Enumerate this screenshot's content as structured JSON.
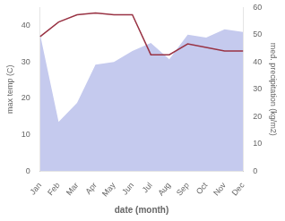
{
  "chart_data": {
    "type": "line",
    "categories": [
      "Jan",
      "Feb",
      "Mar",
      "Apr",
      "May",
      "Jun",
      "Jul",
      "Aug",
      "Sep",
      "Oct",
      "Nov",
      "Dec"
    ],
    "series": [
      {
        "type": "area",
        "axis": "y2",
        "color": "#c5caee",
        "values": [
          50,
          18,
          25,
          39,
          40,
          44,
          47,
          41,
          50,
          49,
          52,
          51
        ]
      },
      {
        "type": "line",
        "color": "#993344",
        "values": [
          37,
          41,
          43,
          43.5,
          43,
          43,
          32,
          32,
          35,
          34,
          33,
          33
        ]
      }
    ],
    "xlabel": "date (month)",
    "ylabel": "max temp (C)",
    "y2label": "med. precipitation (kg/m2)",
    "ylim": [
      0,
      45
    ],
    "yticks": [
      0,
      10,
      20,
      30,
      40
    ],
    "y2lim": [
      0,
      60
    ],
    "y2ticks": [
      0,
      10,
      20,
      30,
      40,
      50,
      60
    ],
    "grid": false
  }
}
